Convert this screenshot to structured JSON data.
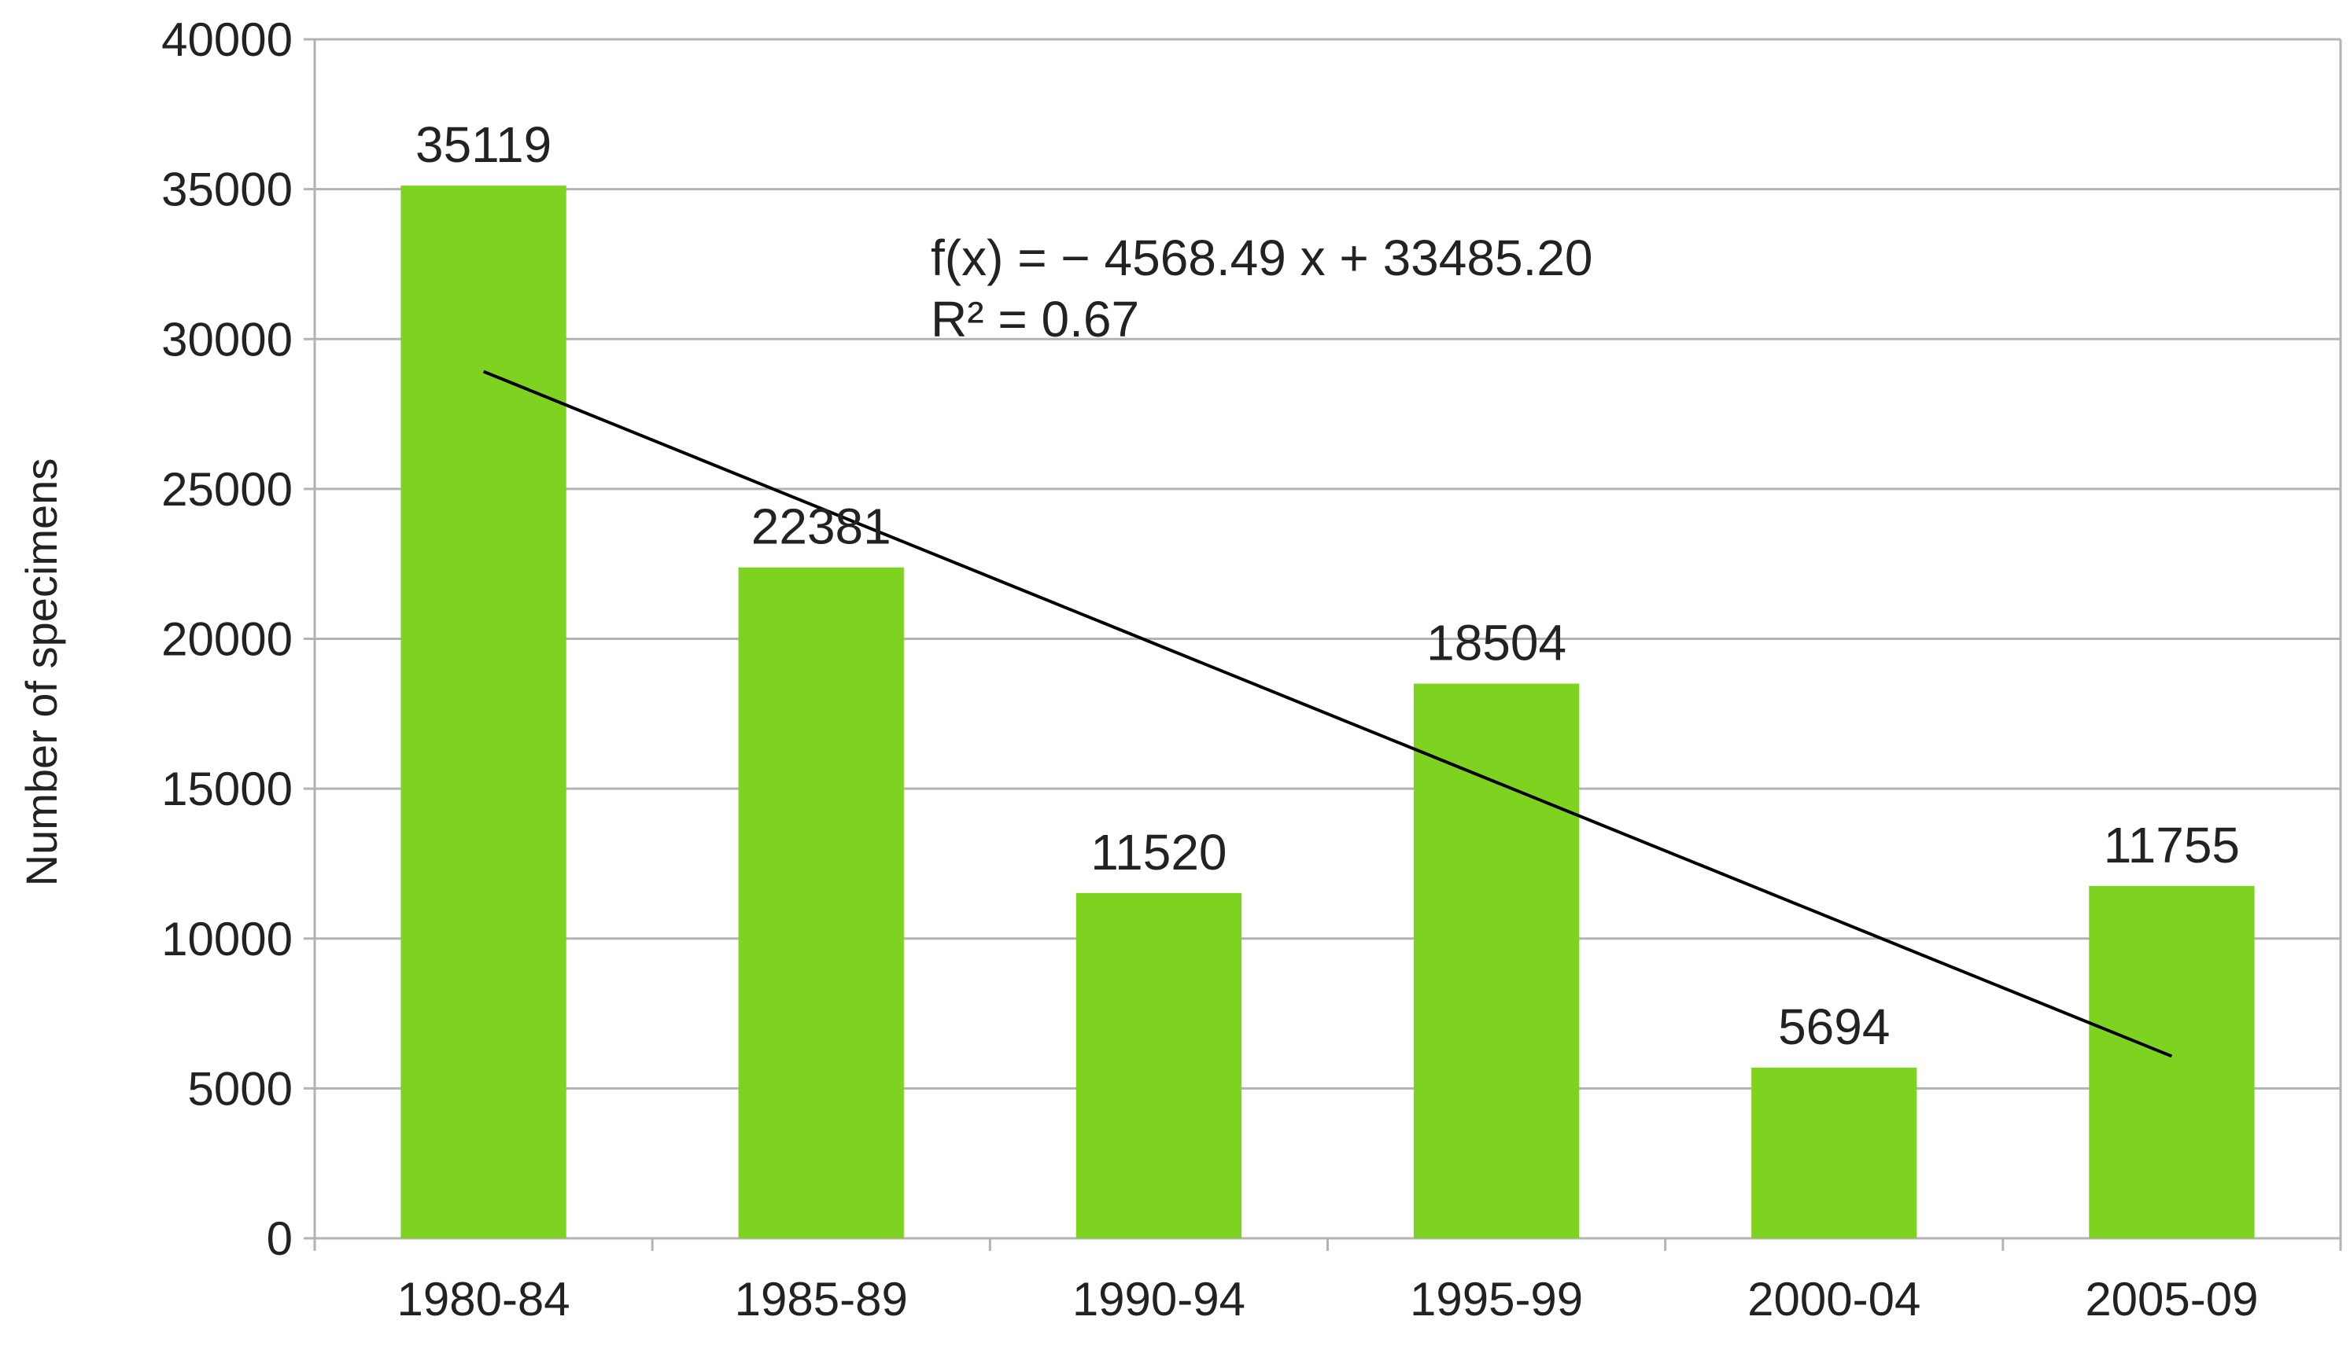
{
  "chart_data": {
    "type": "bar",
    "categories": [
      "1980-84",
      "1985-89",
      "1990-94",
      "1995-99",
      "2000-04",
      "2005-09"
    ],
    "values": [
      35119,
      22381,
      11520,
      18504,
      5694,
      11755
    ],
    "data_labels": [
      "35119",
      "22381",
      "11520",
      "18504",
      "5694",
      "11755"
    ],
    "title": "",
    "xlabel": "",
    "ylabel": "Number of specimens",
    "ylim": [
      0,
      40000
    ],
    "yticks": [
      0,
      5000,
      10000,
      15000,
      20000,
      25000,
      30000,
      35000,
      40000
    ],
    "ytick_labels": [
      "0",
      "5000",
      "10000",
      "15000",
      "20000",
      "25000",
      "30000",
      "35000",
      "40000"
    ],
    "grid": true,
    "legend": "none",
    "bar_color": "#7ed321",
    "trendline": {
      "type": "linear",
      "slope": -4568.49,
      "intercept": 33485.2,
      "r_squared": 0.67,
      "equation_text": "f(x) = − 4568.49 x + 33485.20",
      "r2_text": "R² = 0.67",
      "color": "#000000"
    }
  }
}
